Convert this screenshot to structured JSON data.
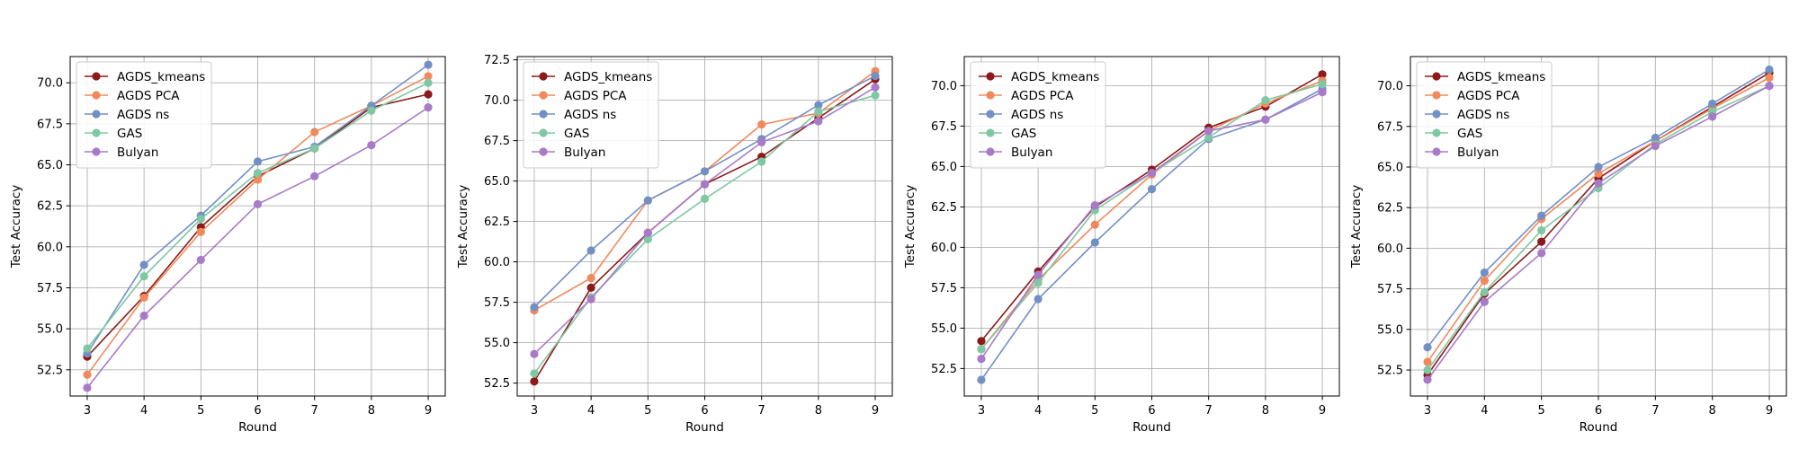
{
  "chart_data": [
    {
      "type": "line",
      "xlabel": "Round",
      "ylabel": "Test Accuracy",
      "x": [
        3,
        4,
        5,
        6,
        7,
        8,
        9
      ],
      "xlim": [
        2.7,
        9.3
      ],
      "ylim": [
        50.9,
        71.6
      ],
      "yticks": [
        52.5,
        55.0,
        57.5,
        60.0,
        62.5,
        65.0,
        67.5,
        70.0
      ],
      "grid": true,
      "legend_position": "upper left",
      "series": [
        {
          "name": "AGDS_kmeans",
          "color": "#8b1a1a",
          "values": [
            53.3,
            57.0,
            61.2,
            64.3,
            66.0,
            68.5,
            69.3
          ]
        },
        {
          "name": "AGDS PCA",
          "color": "#f08a5d",
          "values": [
            52.2,
            56.9,
            60.9,
            64.1,
            67.0,
            68.6,
            70.4
          ]
        },
        {
          "name": "AGDS ns",
          "color": "#7390c5",
          "values": [
            53.5,
            58.9,
            61.9,
            65.2,
            66.1,
            68.6,
            71.1
          ]
        },
        {
          "name": "GAS",
          "color": "#7fc8a3",
          "values": [
            53.8,
            58.2,
            61.7,
            64.5,
            66.0,
            68.3,
            70.0
          ]
        },
        {
          "name": "Bulyan",
          "color": "#a87ac8",
          "values": [
            51.4,
            55.8,
            59.2,
            62.6,
            64.3,
            66.2,
            68.5
          ]
        }
      ]
    },
    {
      "type": "line",
      "xlabel": "Round",
      "ylabel": "Test Accuracy",
      "x": [
        3,
        4,
        5,
        6,
        7,
        8,
        9
      ],
      "xlim": [
        2.7,
        9.3
      ],
      "ylim": [
        51.7,
        72.7
      ],
      "yticks": [
        52.5,
        55.0,
        57.5,
        60.0,
        62.5,
        65.0,
        67.5,
        70.0,
        72.5
      ],
      "grid": true,
      "legend_position": "upper left",
      "series": [
        {
          "name": "AGDS_kmeans",
          "color": "#8b1a1a",
          "values": [
            52.6,
            58.4,
            61.8,
            64.8,
            66.5,
            68.9,
            71.3
          ]
        },
        {
          "name": "AGDS PCA",
          "color": "#f08a5d",
          "values": [
            57.0,
            59.0,
            63.8,
            65.6,
            68.5,
            69.2,
            71.8
          ]
        },
        {
          "name": "AGDS ns",
          "color": "#7390c5",
          "values": [
            57.2,
            60.7,
            63.8,
            65.6,
            67.6,
            69.7,
            71.5
          ]
        },
        {
          "name": "GAS",
          "color": "#7fc8a3",
          "values": [
            53.1,
            57.8,
            61.4,
            63.9,
            66.2,
            69.3,
            70.3
          ]
        },
        {
          "name": "Bulyan",
          "color": "#a87ac8",
          "values": [
            54.3,
            57.7,
            61.8,
            64.8,
            67.4,
            68.7,
            70.8
          ]
        }
      ]
    },
    {
      "type": "line",
      "xlabel": "Round",
      "ylabel": "Test Accuracy",
      "x": [
        3,
        4,
        5,
        6,
        7,
        8,
        9
      ],
      "xlim": [
        2.7,
        9.3
      ],
      "ylim": [
        50.8,
        71.8
      ],
      "yticks": [
        52.5,
        55.0,
        57.5,
        60.0,
        62.5,
        65.0,
        67.5,
        70.0
      ],
      "grid": true,
      "legend_position": "upper left",
      "series": [
        {
          "name": "AGDS_kmeans",
          "color": "#8b1a1a",
          "values": [
            54.2,
            58.5,
            62.5,
            64.8,
            67.4,
            68.7,
            70.7
          ]
        },
        {
          "name": "AGDS PCA",
          "color": "#f08a5d",
          "values": [
            53.7,
            58.0,
            61.4,
            64.5,
            67.2,
            68.9,
            70.3
          ]
        },
        {
          "name": "AGDS ns",
          "color": "#7390c5",
          "values": [
            51.8,
            56.8,
            60.3,
            63.6,
            66.7,
            67.9,
            69.8
          ]
        },
        {
          "name": "GAS",
          "color": "#7fc8a3",
          "values": [
            53.7,
            57.8,
            62.3,
            64.6,
            66.8,
            69.1,
            70.1
          ]
        },
        {
          "name": "Bulyan",
          "color": "#a87ac8",
          "values": [
            53.1,
            58.3,
            62.6,
            64.6,
            67.2,
            67.9,
            69.6
          ]
        }
      ]
    },
    {
      "type": "line",
      "xlabel": "Round",
      "ylabel": "Test Accuracy",
      "x": [
        3,
        4,
        5,
        6,
        7,
        8,
        9
      ],
      "xlim": [
        2.7,
        9.3
      ],
      "ylim": [
        50.9,
        71.8
      ],
      "yticks": [
        52.5,
        55.0,
        57.5,
        60.0,
        62.5,
        65.0,
        67.5,
        70.0
      ],
      "grid": true,
      "legend_position": "upper left",
      "series": [
        {
          "name": "AGDS_kmeans",
          "color": "#8b1a1a",
          "values": [
            52.2,
            57.2,
            60.4,
            64.3,
            66.6,
            68.7,
            70.8
          ]
        },
        {
          "name": "AGDS PCA",
          "color": "#f08a5d",
          "values": [
            53.0,
            58.0,
            61.8,
            64.6,
            66.6,
            68.6,
            70.5
          ]
        },
        {
          "name": "AGDS ns",
          "color": "#7390c5",
          "values": [
            53.9,
            58.5,
            62.0,
            65.0,
            66.8,
            68.9,
            71.0
          ]
        },
        {
          "name": "GAS",
          "color": "#7fc8a3",
          "values": [
            52.5,
            57.3,
            61.1,
            63.7,
            66.4,
            68.4,
            70.0
          ]
        },
        {
          "name": "Bulyan",
          "color": "#a87ac8",
          "values": [
            51.9,
            56.7,
            59.7,
            64.0,
            66.3,
            68.1,
            70.0
          ]
        }
      ]
    }
  ]
}
